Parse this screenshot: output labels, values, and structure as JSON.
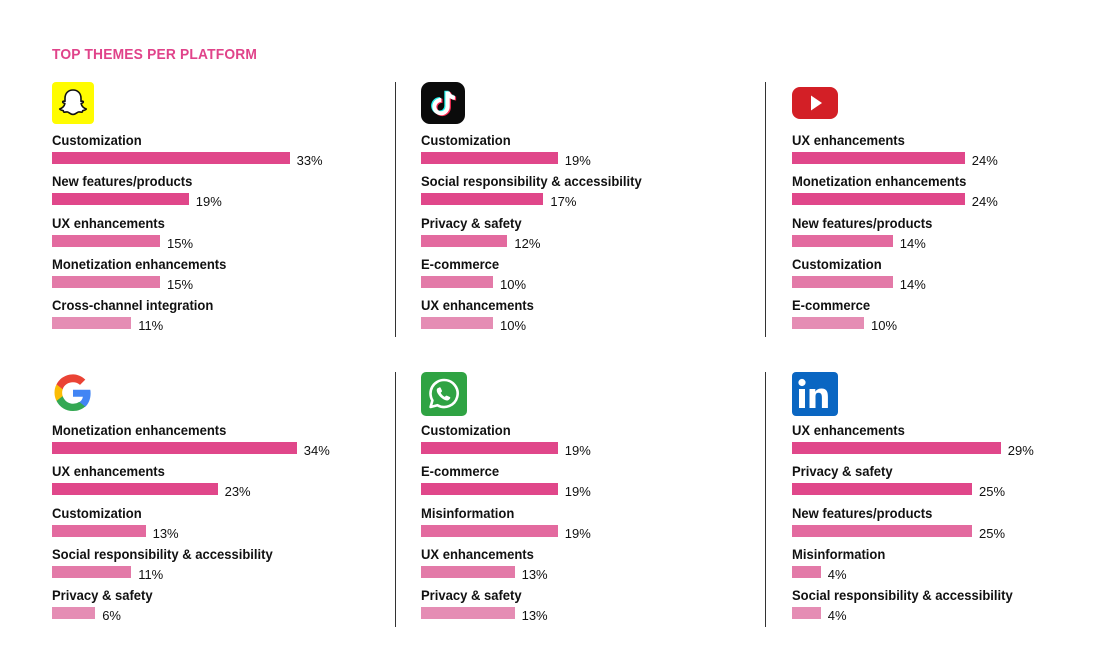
{
  "title": "TOP THEMES PER PLATFORM",
  "colors": {
    "accent": "#e0438a",
    "bar_shades": [
      "#e0478a",
      "#e0478a",
      "#e36a9f",
      "#e37aa8",
      "#e58db4"
    ]
  },
  "chart_data": [
    {
      "type": "bar",
      "orientation": "horizontal",
      "platform_icon": "snapchat-icon",
      "unit": "%",
      "categories": [
        "Customization",
        "New features/products",
        "UX enhancements",
        "Monetization enhancements",
        "Cross-channel integration"
      ],
      "values": [
        33,
        19,
        15,
        15,
        11
      ],
      "labels": [
        "33%",
        "19%",
        "15%",
        "15%",
        "11%"
      ]
    },
    {
      "type": "bar",
      "orientation": "horizontal",
      "platform_icon": "tiktok-icon",
      "unit": "%",
      "categories": [
        "Customization",
        "Social responsibility & accessibility",
        "Privacy & safety",
        "E-commerce",
        "UX enhancements"
      ],
      "values": [
        19,
        17,
        12,
        10,
        10
      ],
      "labels": [
        "19%",
        "17%",
        "12%",
        "10%",
        "10%"
      ]
    },
    {
      "type": "bar",
      "orientation": "horizontal",
      "platform_icon": "youtube-icon",
      "unit": "%",
      "categories": [
        "UX enhancements",
        "Monetization enhancements",
        "New features/products",
        "Customization",
        "E-commerce"
      ],
      "values": [
        24,
        24,
        14,
        14,
        10
      ],
      "labels": [
        "24%",
        "24%",
        "14%",
        "14%",
        "10%"
      ]
    },
    {
      "type": "bar",
      "orientation": "horizontal",
      "platform_icon": "google-icon",
      "unit": "%",
      "categories": [
        "Monetization enhancements",
        "UX enhancements",
        "Customization",
        "Social responsibility & accessibility",
        "Privacy & safety"
      ],
      "values": [
        34,
        23,
        13,
        11,
        6
      ],
      "labels": [
        "34%",
        "23%",
        "13%",
        "11%",
        "6%"
      ]
    },
    {
      "type": "bar",
      "orientation": "horizontal",
      "platform_icon": "whatsapp-icon",
      "unit": "%",
      "categories": [
        "Customization",
        "E-commerce",
        "Misinformation",
        "UX enhancements",
        "Privacy & safety"
      ],
      "values": [
        19,
        19,
        19,
        13,
        13
      ],
      "labels": [
        "19%",
        "19%",
        "19%",
        "13%",
        "13%"
      ]
    },
    {
      "type": "bar",
      "orientation": "horizontal",
      "platform_icon": "linkedin-icon",
      "unit": "%",
      "categories": [
        "UX enhancements",
        "Privacy & safety",
        "New features/products",
        "Misinformation",
        "Social responsibility & accessibility"
      ],
      "values": [
        29,
        25,
        25,
        4,
        4
      ],
      "labels": [
        "29%",
        "25%",
        "25%",
        "4%",
        "4%"
      ]
    }
  ]
}
